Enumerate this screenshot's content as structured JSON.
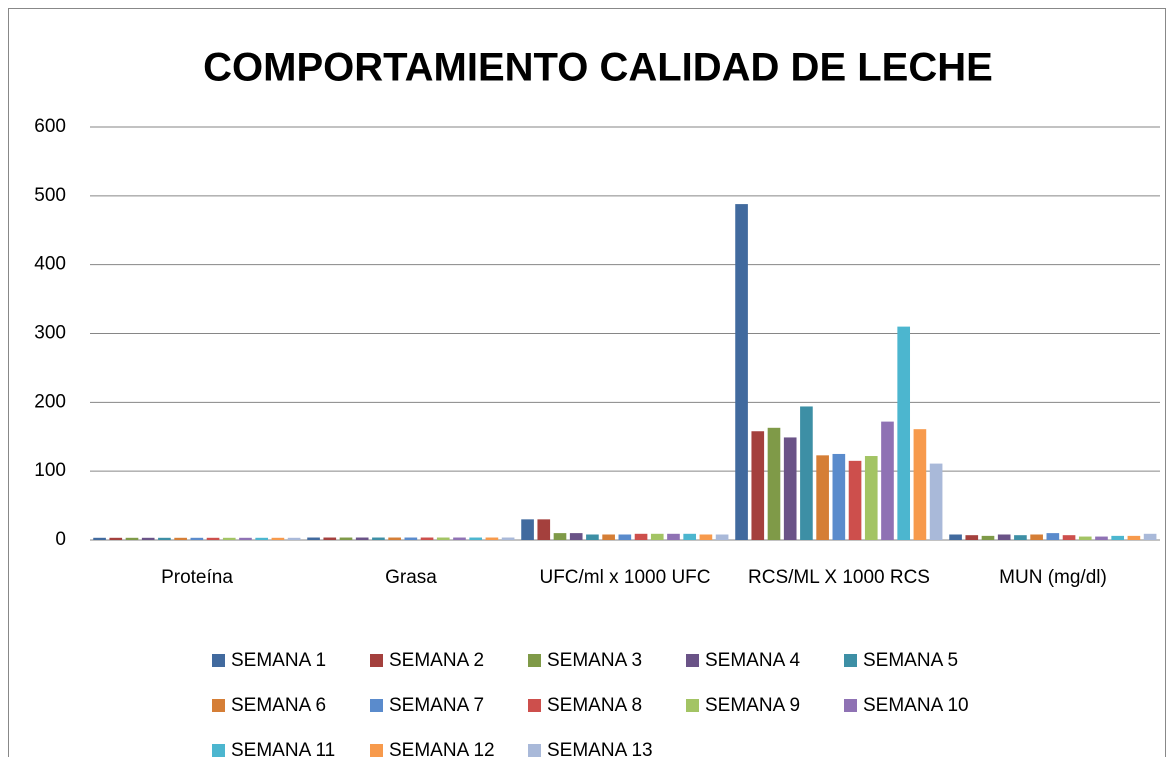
{
  "chart_data": {
    "type": "bar",
    "title": "COMPORTAMIENTO CALIDAD DE LECHE",
    "categories": [
      "Proteína",
      "Grasa",
      "UFC/ml x 1000 UFC",
      "RCS/ML X 1000 RCS",
      "MUN (mg/dl)"
    ],
    "series": [
      {
        "name": "SEMANA 1",
        "color": "#416a9e",
        "values": [
          3.2,
          3.6,
          30,
          488,
          8
        ]
      },
      {
        "name": "SEMANA 2",
        "color": "#a4403d",
        "values": [
          3.2,
          3.6,
          30,
          158,
          7
        ]
      },
      {
        "name": "SEMANA 3",
        "color": "#7f9a48",
        "values": [
          3.2,
          3.6,
          10,
          163,
          6
        ]
      },
      {
        "name": "SEMANA 4",
        "color": "#6a5387",
        "values": [
          3.2,
          3.6,
          10,
          149,
          8
        ]
      },
      {
        "name": "SEMANA 5",
        "color": "#3d8fa5",
        "values": [
          3.2,
          3.6,
          8,
          194,
          7
        ]
      },
      {
        "name": "SEMANA 6",
        "color": "#d57e36",
        "values": [
          3.2,
          3.6,
          8,
          123,
          8
        ]
      },
      {
        "name": "SEMANA 7",
        "color": "#5a8bcc",
        "values": [
          3.2,
          3.6,
          8,
          125,
          10
        ]
      },
      {
        "name": "SEMANA 8",
        "color": "#cd4f4c",
        "values": [
          3.2,
          3.6,
          9,
          115,
          7
        ]
      },
      {
        "name": "SEMANA 9",
        "color": "#a3c464",
        "values": [
          3.2,
          3.6,
          9,
          122,
          5
        ]
      },
      {
        "name": "SEMANA 10",
        "color": "#8f72b4",
        "values": [
          3.2,
          3.6,
          9,
          172,
          5
        ]
      },
      {
        "name": "SEMANA 11",
        "color": "#4cb6cf",
        "values": [
          3.2,
          3.6,
          9,
          310,
          6
        ]
      },
      {
        "name": "SEMANA 12",
        "color": "#f79a4c",
        "values": [
          3.2,
          3.6,
          8,
          161,
          6
        ]
      },
      {
        "name": "SEMANA 13",
        "color": "#a9b9d9",
        "values": [
          3.2,
          3.6,
          8,
          111,
          9
        ]
      }
    ],
    "ylim": [
      0,
      600
    ],
    "yticks": [
      0,
      100,
      200,
      300,
      400,
      500,
      600
    ],
    "grid": true
  }
}
